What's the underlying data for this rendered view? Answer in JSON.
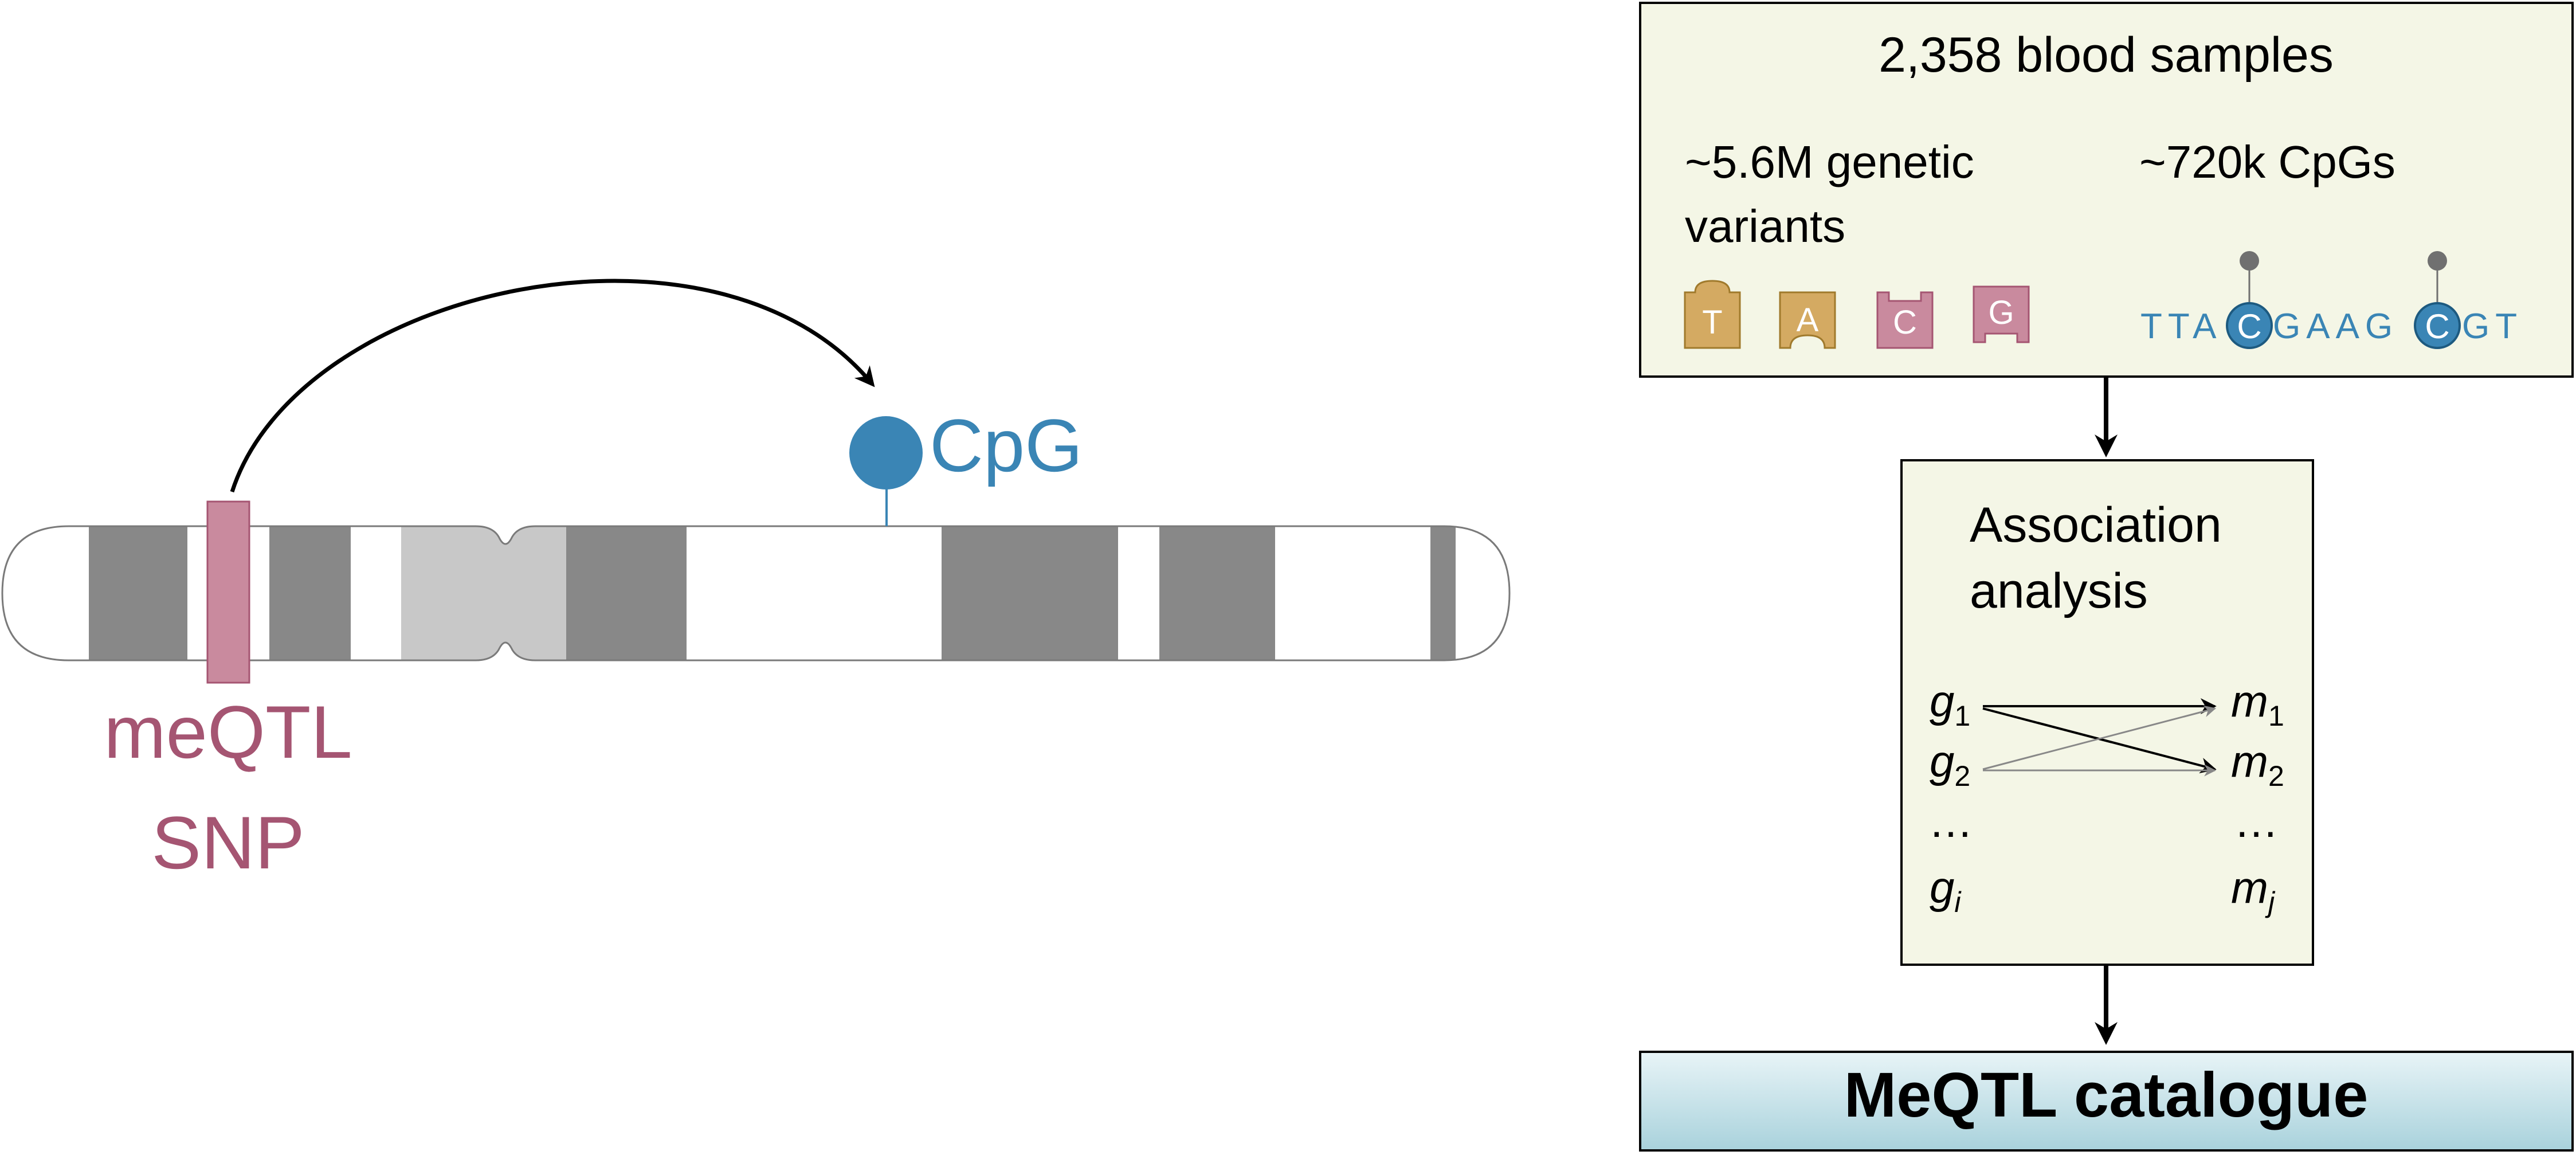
{
  "chromosome": {
    "snp_label_line1": "meQTL",
    "snp_label_line2": "SNP",
    "cpg_label": "CpG"
  },
  "samples_box": {
    "title": "2,358 blood samples",
    "variants_line1": "~5.6M genetic",
    "variants_line2": "variants",
    "cpgs_label": "~720k CpGs",
    "bases": [
      "T",
      "A",
      "C",
      "G"
    ],
    "sequence": {
      "part1": "TTA",
      "c1": "C",
      "part2": "GAAG",
      "c2": "C",
      "part3": "GT"
    }
  },
  "association_box": {
    "title_line1": "Association",
    "title_line2": "analysis",
    "left": [
      {
        "base": "g",
        "sub": "1"
      },
      {
        "base": "g",
        "sub": "2"
      },
      {
        "base": "…",
        "sub": ""
      },
      {
        "base": "g",
        "sub": "i"
      }
    ],
    "right": [
      {
        "base": "m",
        "sub": "1"
      },
      {
        "base": "m",
        "sub": "2"
      },
      {
        "base": "…",
        "sub": ""
      },
      {
        "base": "m",
        "sub": "j"
      }
    ]
  },
  "catalogue": {
    "label": "MeQTL catalogue"
  },
  "colors": {
    "snp": "#a55572",
    "snp_fill": "#c98a9e",
    "cpg": "#3a85b5",
    "band_dark": "#888888",
    "band_light": "#c8c8c8",
    "box_fill": "#f4f6e6",
    "base_tan": "#d4aa62",
    "base_pink": "#c98a9e",
    "lollipop": "#707070"
  }
}
